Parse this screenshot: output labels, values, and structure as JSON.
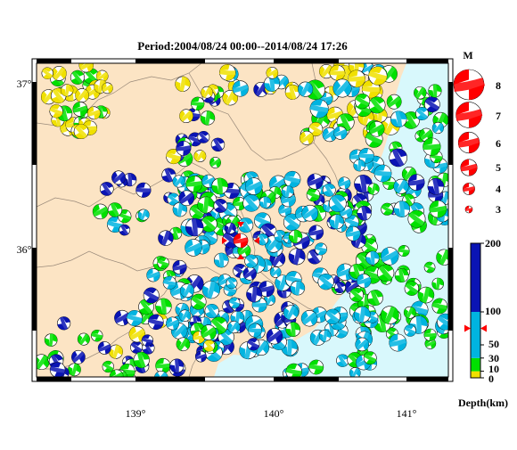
{
  "title": "Period:2004/08/24 00:00--2014/08/24 17:26",
  "axes": {
    "lat_labels": [
      "37°",
      "36°"
    ],
    "lon_labels": [
      "139°",
      "140°",
      "141°"
    ]
  },
  "magnitude_legend": {
    "header": "M",
    "items": [
      {
        "label": "8",
        "m": 8
      },
      {
        "label": "7",
        "m": 7
      },
      {
        "label": "6",
        "m": 6
      },
      {
        "label": "5",
        "m": 5
      },
      {
        "label": "4",
        "m": 4
      },
      {
        "label": "3",
        "m": 3
      }
    ]
  },
  "depth_scale": {
    "title": "Depth(km)",
    "tick_labels": [
      "200",
      "100",
      "50",
      "30",
      "10",
      "0"
    ],
    "bands": [
      {
        "from": 0,
        "to": 10,
        "color": "#f0e000"
      },
      {
        "from": 10,
        "to": 30,
        "color": "#00e000"
      },
      {
        "from": 30,
        "to": 100,
        "color": "#00b4e0"
      },
      {
        "from": 100,
        "to": 200,
        "color": "#0a14b4"
      }
    ],
    "marker_depth": 75
  },
  "colors": {
    "land": "#fce4c4",
    "sea": "#d8f8fc",
    "mainshock": "#ff0000",
    "shallow": "#f0e000",
    "mid": "#00e000",
    "intermediate": "#00b4e0",
    "deep": "#0a14b4"
  }
}
